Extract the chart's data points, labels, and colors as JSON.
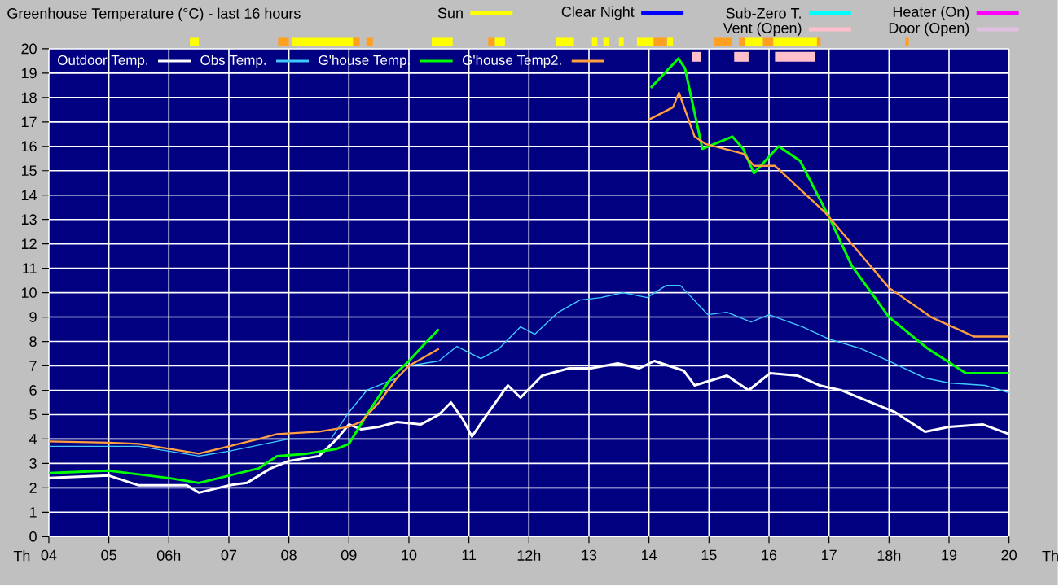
{
  "chart_data": {
    "type": "line",
    "title": "Greenhouse Temperature (°C) - last 16 hours",
    "xlim": [
      4,
      20
    ],
    "ylim": [
      0,
      20
    ],
    "xticks": [
      {
        "value": 4,
        "label": "04"
      },
      {
        "value": 5,
        "label": "05"
      },
      {
        "value": 6,
        "label": "06h"
      },
      {
        "value": 7,
        "label": "07"
      },
      {
        "value": 8,
        "label": "08"
      },
      {
        "value": 9,
        "label": "09"
      },
      10,
      11,
      {
        "value": 12,
        "label": "12h"
      },
      13,
      14,
      15,
      16,
      17,
      {
        "value": 18,
        "label": "18h"
      },
      19,
      20
    ],
    "yticks": [
      0,
      1,
      2,
      3,
      4,
      5,
      6,
      7,
      8,
      9,
      10,
      11,
      12,
      13,
      14,
      15,
      16,
      17,
      18,
      19,
      20
    ],
    "grid": true,
    "legend": "top left",
    "annotations": [
      "Th",
      "Th"
    ],
    "series": [
      {
        "name": "Outdoor Temp.",
        "color": "#ffffff",
        "x": [
          4.0,
          5.0,
          5.5,
          6.0,
          6.3,
          6.5,
          7.0,
          7.3,
          7.7,
          8.0,
          8.5,
          8.8,
          9.0,
          9.2,
          9.5,
          9.8,
          10.2,
          10.5,
          10.7,
          10.9,
          11.05,
          11.3,
          11.65,
          11.86,
          12.22,
          12.67,
          13.03,
          13.48,
          13.84,
          14.09,
          14.58,
          14.76,
          15.3,
          15.66,
          16.02,
          16.48,
          16.84,
          17.2,
          18.1,
          18.6,
          19.0,
          19.56,
          20.0
        ],
        "values": [
          2.4,
          2.5,
          2.1,
          2.1,
          2.1,
          1.8,
          2.1,
          2.2,
          2.8,
          3.1,
          3.3,
          4.0,
          4.6,
          4.4,
          4.5,
          4.7,
          4.6,
          5.0,
          5.5,
          4.8,
          4.1,
          5.0,
          6.2,
          5.7,
          6.6,
          6.9,
          6.9,
          7.1,
          6.9,
          7.2,
          6.8,
          6.2,
          6.6,
          6.0,
          6.7,
          6.6,
          6.2,
          6.0,
          5.1,
          4.3,
          4.5,
          4.6,
          4.2
        ]
      },
      {
        "name": "Obs Temp.",
        "color": "#40c8ff",
        "x": [
          4.0,
          5.5,
          6.5,
          7.0,
          7.6,
          8.0,
          8.7,
          9.0,
          9.3,
          9.8,
          10.0,
          10.5,
          10.8,
          11.2,
          11.5,
          11.86,
          12.1,
          12.49,
          12.85,
          13.2,
          13.57,
          13.97,
          14.29,
          14.52,
          14.98,
          15.3,
          15.7,
          16.0,
          16.56,
          17.0,
          17.54,
          18.0,
          18.6,
          19.0,
          19.6,
          20.0
        ],
        "values": [
          3.7,
          3.7,
          3.3,
          3.5,
          3.8,
          4.0,
          4.0,
          5.1,
          6.0,
          6.5,
          7.0,
          7.2,
          7.8,
          7.3,
          7.7,
          8.6,
          8.3,
          9.2,
          9.7,
          9.8,
          10.0,
          9.8,
          10.3,
          10.3,
          9.1,
          9.2,
          8.8,
          9.1,
          8.6,
          8.1,
          7.7,
          7.2,
          6.5,
          6.3,
          6.2,
          5.9
        ]
      },
      {
        "name": "G'house Temp.",
        "color": "#00ff00",
        "x": [
          4.0,
          5.0,
          6.0,
          6.5,
          7.0,
          7.5,
          7.8,
          8.3,
          8.8,
          9.0,
          9.3,
          9.7,
          10.0,
          10.3,
          10.5,
          12.0,
          14.03,
          14.49,
          14.6,
          14.89,
          15.39,
          15.57,
          15.75,
          16.16,
          16.52,
          17.02,
          17.38,
          18.0,
          18.65,
          19.28,
          20.0
        ],
        "values": [
          2.6,
          2.7,
          2.4,
          2.2,
          2.5,
          2.8,
          3.3,
          3.4,
          3.6,
          3.8,
          5.0,
          6.5,
          7.2,
          8.0,
          8.5,
          null,
          18.4,
          19.6,
          19.2,
          15.9,
          16.4,
          15.9,
          14.9,
          16.0,
          15.4,
          13.0,
          11.1,
          9.0,
          7.7,
          6.7,
          6.7
        ]
      },
      {
        "name": "G'house Temp2.",
        "color": "#ffa040",
        "x": [
          4.0,
          5.0,
          5.5,
          6.0,
          6.5,
          7.0,
          7.5,
          7.8,
          8.5,
          9.0,
          9.2,
          9.5,
          9.8,
          10.0,
          10.5,
          12.0,
          14.0,
          14.4,
          14.5,
          14.76,
          14.94,
          15.57,
          15.75,
          16.1,
          16.93,
          17.38,
          18.0,
          18.7,
          19.42,
          20.0
        ],
        "values": [
          3.9,
          3.85,
          3.8,
          3.6,
          3.4,
          3.7,
          4.0,
          4.2,
          4.3,
          4.5,
          4.7,
          5.5,
          6.5,
          7.0,
          7.7,
          null,
          17.1,
          17.6,
          18.2,
          16.4,
          16.1,
          15.7,
          15.2,
          15.2,
          13.3,
          12.0,
          10.2,
          9.0,
          8.2,
          8.2
        ]
      },
      {
        "name": "Sun",
        "color": "#ffff00"
      },
      {
        "name": "Clear Night",
        "color": "#0000ff"
      },
      {
        "name": "Sub-Zero T.",
        "color": "#00ffff"
      },
      {
        "name": "Heater (On)",
        "color": "#ff00ff"
      },
      {
        "name": "Vent (Open)",
        "color": "#ffc0cb"
      },
      {
        "name": "Door (Open)",
        "color": "#e0c0e0"
      }
    ]
  }
}
